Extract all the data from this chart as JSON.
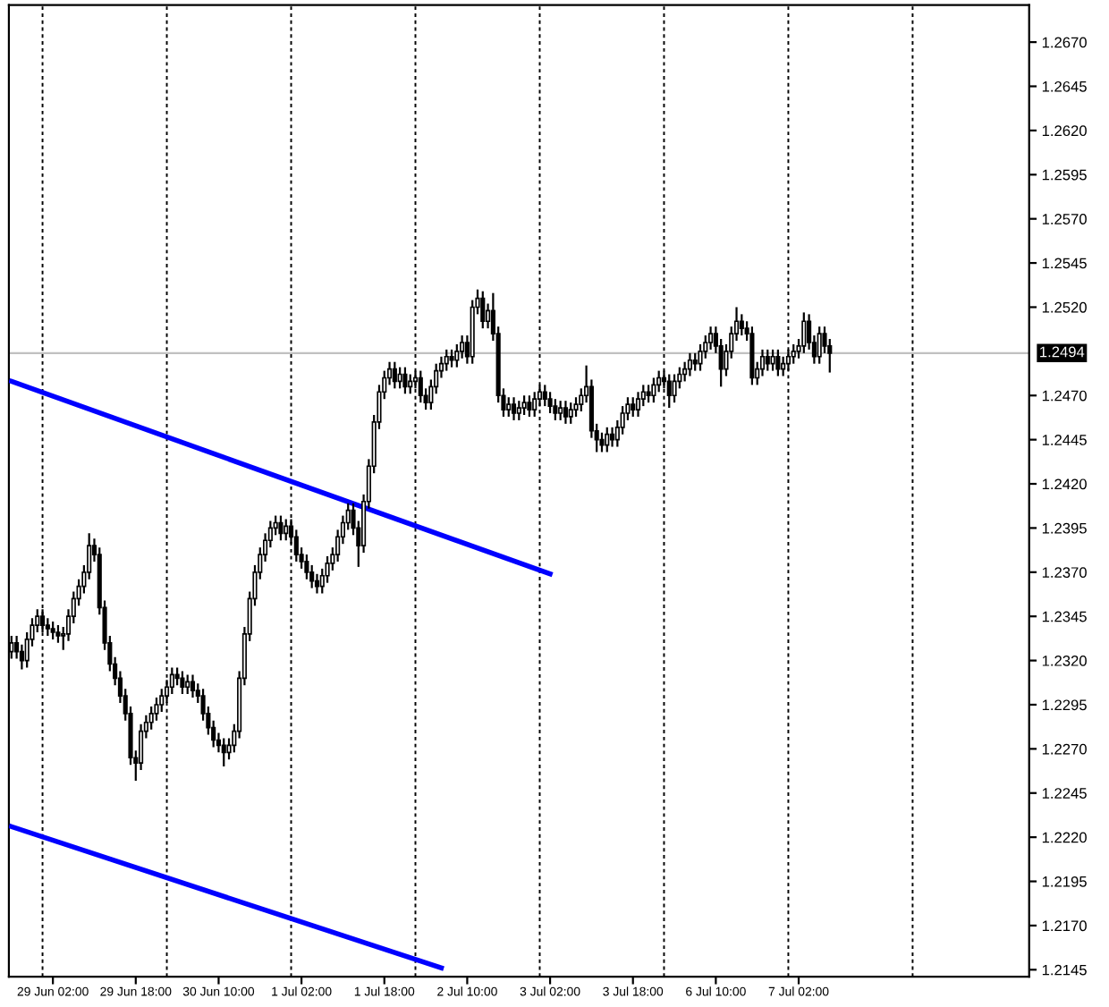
{
  "chart_data": {
    "type": "candlestick",
    "categories": [
      null,
      null,
      null,
      null,
      null,
      null,
      null,
      null,
      "29 Jun 02:00",
      null,
      null,
      null,
      null,
      null,
      null,
      null,
      null,
      null,
      null,
      null,
      null,
      null,
      null,
      null,
      "29 Jun 18:00",
      null,
      null,
      null,
      null,
      null,
      null,
      null,
      null,
      null,
      null,
      null,
      null,
      null,
      null,
      null,
      "30 Jun 10:00",
      null,
      null,
      null,
      null,
      null,
      null,
      null,
      null,
      null,
      null,
      null,
      null,
      null,
      null,
      null,
      "1 Jul 02:00",
      null,
      null,
      null,
      null,
      null,
      null,
      null,
      null,
      null,
      null,
      null,
      null,
      null,
      null,
      null,
      "1 Jul 18:00",
      null,
      null,
      null,
      null,
      null,
      null,
      null,
      null,
      null,
      null,
      null,
      null,
      null,
      null,
      null,
      "2 Jul 10:00",
      null,
      null,
      null,
      null,
      null,
      null,
      null,
      null,
      null,
      null,
      null,
      null,
      null,
      null,
      null,
      "3 Jul 02:00",
      null,
      null,
      null,
      null,
      null,
      null,
      null,
      null,
      null,
      null,
      null,
      null,
      null,
      null,
      null,
      "3 Jul 18:00",
      null,
      null,
      null,
      null,
      null,
      null,
      null,
      null,
      null,
      null,
      null,
      null,
      null,
      null,
      null,
      "6 Jul 10:00",
      null,
      null,
      null,
      null,
      null,
      null,
      null,
      null,
      null,
      null,
      null,
      null,
      null,
      null,
      null,
      "7 Jul 02:00",
      null,
      null,
      null,
      null,
      null,
      null,
      null,
      null,
      null,
      null,
      null,
      null,
      null,
      null,
      null,
      null,
      null,
      null,
      null,
      null,
      null,
      null,
      null,
      null,
      null,
      null,
      null,
      null,
      null,
      null,
      null,
      null,
      null,
      null,
      null,
      null,
      null,
      null,
      null,
      null,
      null,
      null,
      null,
      null
    ],
    "ohlc": [
      [
        1.2325,
        1.2334,
        1.2321,
        1.233
      ],
      [
        1.233,
        1.2334,
        1.2321,
        1.2325
      ],
      [
        1.2325,
        1.2329,
        1.2315,
        1.232
      ],
      [
        1.232,
        1.2336,
        1.2316,
        1.2332
      ],
      [
        1.2332,
        1.2344,
        1.2328,
        1.234
      ],
      [
        1.234,
        1.2349,
        1.2336,
        1.2345
      ],
      [
        1.2345,
        1.2349,
        1.2336,
        1.234
      ],
      [
        1.234,
        1.2344,
        1.2334,
        1.2338
      ],
      [
        1.2338,
        1.2342,
        1.2332,
        1.2336
      ],
      [
        1.2336,
        1.234,
        1.233,
        1.2334
      ],
      [
        1.2334,
        1.2339,
        1.2326,
        1.2335
      ],
      [
        1.2335,
        1.2349,
        1.2331,
        1.2345
      ],
      [
        1.2345,
        1.2359,
        1.2341,
        1.2355
      ],
      [
        1.2355,
        1.2366,
        1.2351,
        1.2362
      ],
      [
        1.2362,
        1.2374,
        1.2358,
        1.237
      ],
      [
        1.237,
        1.2392,
        1.2366,
        1.2385
      ],
      [
        1.2385,
        1.2389,
        1.2376,
        1.238
      ],
      [
        1.238,
        1.2384,
        1.2346,
        1.235
      ],
      [
        1.235,
        1.2354,
        1.2326,
        1.233
      ],
      [
        1.233,
        1.2334,
        1.2314,
        1.2318
      ],
      [
        1.2318,
        1.2322,
        1.2306,
        1.231
      ],
      [
        1.231,
        1.2314,
        1.2296,
        1.23
      ],
      [
        1.23,
        1.2304,
        1.2286,
        1.229
      ],
      [
        1.229,
        1.2294,
        1.2261,
        1.2265
      ],
      [
        1.2265,
        1.2269,
        1.2252,
        1.2262
      ],
      [
        1.2262,
        1.2284,
        1.2258,
        1.228
      ],
      [
        1.228,
        1.2289,
        1.2276,
        1.2285
      ],
      [
        1.2285,
        1.2294,
        1.2281,
        1.229
      ],
      [
        1.229,
        1.2299,
        1.2286,
        1.2295
      ],
      [
        1.2295,
        1.2304,
        1.2291,
        1.23
      ],
      [
        1.23,
        1.2309,
        1.2296,
        1.2305
      ],
      [
        1.2305,
        1.2316,
        1.2301,
        1.2312
      ],
      [
        1.2312,
        1.2316,
        1.2306,
        1.231
      ],
      [
        1.231,
        1.2314,
        1.2301,
        1.2305
      ],
      [
        1.2305,
        1.2312,
        1.2301,
        1.2308
      ],
      [
        1.2308,
        1.2312,
        1.2299,
        1.2303
      ],
      [
        1.2303,
        1.2307,
        1.2296,
        1.23
      ],
      [
        1.23,
        1.2304,
        1.2286,
        1.229
      ],
      [
        1.229,
        1.2294,
        1.2278,
        1.2282
      ],
      [
        1.2282,
        1.2286,
        1.2271,
        1.2275
      ],
      [
        1.2275,
        1.2279,
        1.2268,
        1.2272
      ],
      [
        1.2272,
        1.2276,
        1.226,
        1.2268
      ],
      [
        1.2268,
        1.2276,
        1.2264,
        1.2272
      ],
      [
        1.2272,
        1.2284,
        1.2268,
        1.228
      ],
      [
        1.228,
        1.2314,
        1.2276,
        1.231
      ],
      [
        1.231,
        1.2339,
        1.2306,
        1.2335
      ],
      [
        1.2335,
        1.2359,
        1.2331,
        1.2355
      ],
      [
        1.2355,
        1.2374,
        1.2351,
        1.237
      ],
      [
        1.237,
        1.2384,
        1.2366,
        1.238
      ],
      [
        1.238,
        1.2392,
        1.2376,
        1.2388
      ],
      [
        1.2388,
        1.2399,
        1.2384,
        1.2395
      ],
      [
        1.2395,
        1.2402,
        1.2391,
        1.2398
      ],
      [
        1.2398,
        1.2402,
        1.2388,
        1.2392
      ],
      [
        1.2392,
        1.24,
        1.2388,
        1.2396
      ],
      [
        1.2396,
        1.24,
        1.2386,
        1.239
      ],
      [
        1.239,
        1.2394,
        1.2376,
        1.238
      ],
      [
        1.238,
        1.2384,
        1.2372,
        1.2376
      ],
      [
        1.2376,
        1.238,
        1.2366,
        1.237
      ],
      [
        1.237,
        1.2374,
        1.2361,
        1.2365
      ],
      [
        1.2365,
        1.2369,
        1.2358,
        1.2362
      ],
      [
        1.2362,
        1.2372,
        1.2358,
        1.2368
      ],
      [
        1.2368,
        1.2379,
        1.2364,
        1.2375
      ],
      [
        1.2375,
        1.2384,
        1.2371,
        1.238
      ],
      [
        1.238,
        1.2394,
        1.2376,
        1.239
      ],
      [
        1.239,
        1.2402,
        1.2386,
        1.2398
      ],
      [
        1.2398,
        1.2409,
        1.2394,
        1.2405
      ],
      [
        1.2405,
        1.2409,
        1.2391,
        1.2395
      ],
      [
        1.2395,
        1.2399,
        1.2373,
        1.2385
      ],
      [
        1.2385,
        1.2414,
        1.2381,
        1.241
      ],
      [
        1.241,
        1.2434,
        1.2406,
        1.243
      ],
      [
        1.243,
        1.2459,
        1.2426,
        1.2455
      ],
      [
        1.2455,
        1.2476,
        1.2451,
        1.2472
      ],
      [
        1.2472,
        1.2484,
        1.2468,
        1.248
      ],
      [
        1.248,
        1.2489,
        1.2476,
        1.2485
      ],
      [
        1.2485,
        1.2489,
        1.2474,
        1.2478
      ],
      [
        1.2478,
        1.2486,
        1.2474,
        1.2482
      ],
      [
        1.2482,
        1.2486,
        1.2471,
        1.2475
      ],
      [
        1.2475,
        1.2482,
        1.2471,
        1.2478
      ],
      [
        1.2478,
        1.2484,
        1.2474,
        1.248
      ],
      [
        1.248,
        1.2484,
        1.2466,
        1.247
      ],
      [
        1.247,
        1.2474,
        1.2462,
        1.2466
      ],
      [
        1.2466,
        1.2479,
        1.2462,
        1.2475
      ],
      [
        1.2475,
        1.2488,
        1.2471,
        1.2484
      ],
      [
        1.2484,
        1.2492,
        1.248,
        1.2488
      ],
      [
        1.2488,
        1.2496,
        1.2484,
        1.2492
      ],
      [
        1.2492,
        1.2496,
        1.2486,
        1.249
      ],
      [
        1.249,
        1.2499,
        1.2486,
        1.2495
      ],
      [
        1.2495,
        1.2504,
        1.2491,
        1.25
      ],
      [
        1.25,
        1.2504,
        1.2488,
        1.2492
      ],
      [
        1.2492,
        1.2524,
        1.2488,
        1.252
      ],
      [
        1.252,
        1.253,
        1.2516,
        1.2525
      ],
      [
        1.2525,
        1.2529,
        1.2508,
        1.2512
      ],
      [
        1.2512,
        1.2522,
        1.2508,
        1.2518
      ],
      [
        1.2518,
        1.2528,
        1.2501,
        1.2505
      ],
      [
        1.2505,
        1.2509,
        1.2466,
        1.247
      ],
      [
        1.247,
        1.2474,
        1.2458,
        1.2462
      ],
      [
        1.2462,
        1.2469,
        1.2458,
        1.2465
      ],
      [
        1.2465,
        1.2469,
        1.2456,
        1.246
      ],
      [
        1.246,
        1.2467,
        1.2456,
        1.2463
      ],
      [
        1.2463,
        1.247,
        1.2459,
        1.2466
      ],
      [
        1.2466,
        1.247,
        1.2458,
        1.2462
      ],
      [
        1.2462,
        1.2472,
        1.2458,
        1.2468
      ],
      [
        1.2468,
        1.2476,
        1.2464,
        1.2472
      ],
      [
        1.2472,
        1.2476,
        1.2464,
        1.2468
      ],
      [
        1.2468,
        1.2472,
        1.246,
        1.2464
      ],
      [
        1.2464,
        1.2468,
        1.2456,
        1.246
      ],
      [
        1.246,
        1.2467,
        1.2456,
        1.2463
      ],
      [
        1.2463,
        1.2467,
        1.2454,
        1.2458
      ],
      [
        1.2458,
        1.2466,
        1.2454,
        1.2462
      ],
      [
        1.2462,
        1.2469,
        1.2458,
        1.2465
      ],
      [
        1.2465,
        1.2474,
        1.2461,
        1.247
      ],
      [
        1.247,
        1.2487,
        1.2466,
        1.2475
      ],
      [
        1.2475,
        1.2479,
        1.2446,
        1.245
      ],
      [
        1.245,
        1.2454,
        1.2438,
        1.2445
      ],
      [
        1.2445,
        1.2449,
        1.2438,
        1.2442
      ],
      [
        1.2442,
        1.2452,
        1.2438,
        1.2448
      ],
      [
        1.2448,
        1.2452,
        1.2441,
        1.2445
      ],
      [
        1.2445,
        1.2456,
        1.2441,
        1.2452
      ],
      [
        1.2452,
        1.2464,
        1.2448,
        1.246
      ],
      [
        1.246,
        1.2469,
        1.2456,
        1.2465
      ],
      [
        1.2465,
        1.2469,
        1.2458,
        1.2462
      ],
      [
        1.2462,
        1.2472,
        1.2458,
        1.2468
      ],
      [
        1.2468,
        1.2476,
        1.2464,
        1.2472
      ],
      [
        1.2472,
        1.2476,
        1.2466,
        1.247
      ],
      [
        1.247,
        1.248,
        1.2466,
        1.2476
      ],
      [
        1.2476,
        1.2484,
        1.2472,
        1.248
      ],
      [
        1.248,
        1.2484,
        1.2474,
        1.2478
      ],
      [
        1.2478,
        1.2482,
        1.2463,
        1.247
      ],
      [
        1.247,
        1.2482,
        1.2466,
        1.2478
      ],
      [
        1.2478,
        1.2486,
        1.2474,
        1.2482
      ],
      [
        1.2482,
        1.2489,
        1.2478,
        1.2485
      ],
      [
        1.2485,
        1.2494,
        1.2481,
        1.249
      ],
      [
        1.249,
        1.2494,
        1.2484,
        1.2488
      ],
      [
        1.2488,
        1.2499,
        1.2484,
        1.2495
      ],
      [
        1.2495,
        1.2504,
        1.2491,
        1.25
      ],
      [
        1.25,
        1.2509,
        1.2496,
        1.2505
      ],
      [
        1.2505,
        1.2509,
        1.2494,
        1.2498
      ],
      [
        1.2498,
        1.2502,
        1.2475,
        1.2485
      ],
      [
        1.2485,
        1.2499,
        1.2481,
        1.2495
      ],
      [
        1.2495,
        1.2509,
        1.2491,
        1.2505
      ],
      [
        1.2505,
        1.252,
        1.2501,
        1.2512
      ],
      [
        1.2512,
        1.2516,
        1.2504,
        1.2508
      ],
      [
        1.2508,
        1.2512,
        1.2501,
        1.2505
      ],
      [
        1.2505,
        1.2509,
        1.2476,
        1.248
      ],
      [
        1.248,
        1.2489,
        1.2476,
        1.2485
      ],
      [
        1.2485,
        1.2496,
        1.2481,
        1.2492
      ],
      [
        1.2492,
        1.2496,
        1.2484,
        1.2488
      ],
      [
        1.2488,
        1.2496,
        1.2484,
        1.2492
      ],
      [
        1.2492,
        1.2496,
        1.2481,
        1.2485
      ],
      [
        1.2485,
        1.2492,
        1.2481,
        1.2488
      ],
      [
        1.2488,
        1.2496,
        1.2484,
        1.2492
      ],
      [
        1.2492,
        1.2499,
        1.2488,
        1.2495
      ],
      [
        1.2495,
        1.2502,
        1.2491,
        1.2498
      ],
      [
        1.2498,
        1.2517,
        1.2494,
        1.2512
      ],
      [
        1.2512,
        1.2516,
        1.2496,
        1.25
      ],
      [
        1.25,
        1.2504,
        1.2488,
        1.2492
      ],
      [
        1.2492,
        1.2509,
        1.2488,
        1.2505
      ],
      [
        1.2505,
        1.2509,
        1.2494,
        1.2498
      ],
      [
        1.2498,
        1.2502,
        1.2483,
        1.2494
      ],
      null,
      null,
      null,
      null,
      null,
      null,
      null,
      null,
      null,
      null,
      null,
      null,
      null,
      null,
      null,
      null,
      null,
      null,
      null,
      null,
      null,
      null,
      null,
      null,
      null,
      null,
      null,
      null,
      null,
      null,
      null,
      null,
      null,
      null,
      null,
      null,
      null,
      null
    ],
    "series": [
      {
        "type": "line",
        "color": "#0000ff",
        "values": [
          1.2478,
          null,
          null,
          null,
          null,
          null,
          null,
          null,
          null,
          null,
          null,
          null,
          null,
          null,
          null,
          null,
          null,
          null,
          null,
          null,
          null,
          null,
          null,
          null,
          null,
          null,
          null,
          null,
          null,
          null,
          null,
          null,
          null,
          null,
          null,
          null,
          null,
          null,
          null,
          null,
          null,
          null,
          null,
          null,
          null,
          null,
          null,
          null,
          null,
          null,
          null,
          null,
          null,
          null,
          null,
          null,
          null,
          null,
          null,
          null,
          null,
          null,
          null,
          null,
          null,
          null,
          null,
          null,
          null,
          null,
          null,
          null,
          null,
          null,
          null,
          null,
          null,
          null,
          null,
          null,
          null,
          null,
          null,
          null,
          null,
          null,
          null,
          null,
          null,
          null,
          null,
          null,
          null,
          null,
          null,
          null,
          null,
          null,
          null,
          null,
          null,
          null,
          null,
          null,
          1.2369,
          null,
          null,
          null,
          null,
          null,
          null,
          null,
          null,
          null,
          null,
          null,
          null,
          null,
          null,
          null,
          null,
          null,
          null,
          null,
          null,
          null,
          null,
          null,
          null,
          null,
          null,
          null,
          null,
          null,
          null,
          null,
          null,
          null,
          null,
          null,
          null,
          null,
          null,
          null,
          null,
          null,
          null,
          null,
          null,
          null,
          null,
          null,
          null,
          null,
          null,
          null,
          null,
          null,
          null,
          null,
          null,
          null,
          null,
          null,
          null,
          null,
          null,
          null,
          null,
          null,
          null,
          null,
          null,
          null,
          null,
          null,
          null,
          null,
          null,
          null,
          null,
          null,
          null,
          null,
          null,
          null,
          null,
          null,
          null,
          null,
          null,
          null,
          null,
          null,
          null,
          null,
          null
        ]
      },
      {
        "type": "line",
        "color": "#0000ff",
        "values": [
          1.2226,
          null,
          null,
          null,
          null,
          null,
          null,
          null,
          null,
          null,
          null,
          null,
          null,
          null,
          null,
          null,
          null,
          null,
          null,
          null,
          null,
          null,
          null,
          null,
          null,
          null,
          null,
          null,
          null,
          null,
          null,
          null,
          null,
          null,
          null,
          null,
          null,
          null,
          null,
          null,
          null,
          null,
          null,
          null,
          null,
          null,
          null,
          null,
          null,
          null,
          null,
          null,
          null,
          null,
          null,
          null,
          null,
          null,
          null,
          null,
          null,
          null,
          null,
          null,
          null,
          null,
          null,
          null,
          null,
          null,
          null,
          null,
          null,
          null,
          null,
          null,
          null,
          null,
          null,
          null,
          null,
          null,
          null,
          1.2146,
          null,
          null,
          null,
          null,
          null,
          null,
          null,
          null,
          null,
          null,
          null,
          null,
          null,
          null,
          null,
          null,
          null,
          null,
          null,
          null,
          null,
          null,
          null,
          null,
          null,
          null,
          null,
          null,
          null,
          null,
          null,
          null,
          null,
          null,
          null,
          null,
          null,
          null,
          null,
          null,
          null,
          null,
          null,
          null,
          null,
          null,
          null,
          null,
          null,
          null,
          null,
          null,
          null,
          null,
          null,
          null,
          null,
          null,
          null,
          null,
          null,
          null,
          null,
          null,
          null,
          null,
          null,
          null,
          null,
          null,
          null,
          null,
          null,
          null,
          null,
          null,
          null,
          null,
          null,
          null,
          null,
          null,
          null,
          null,
          null,
          null,
          null,
          null,
          null,
          null,
          null,
          null,
          null,
          null,
          null,
          null,
          null,
          null,
          null,
          null,
          null,
          null,
          null,
          null,
          null,
          null,
          null,
          null,
          null,
          null,
          null,
          null,
          null
        ]
      }
    ],
    "ref_lines": [
      {
        "axis": "y",
        "value": 1.2494,
        "label": "1.2494",
        "color": "#c0c0c0",
        "line_style": "solid"
      }
    ],
    "ylim": [
      1.2141,
      1.2691
    ],
    "yticks": [
      {
        "value": 1.2145,
        "label": "1.2145"
      },
      {
        "value": 1.217,
        "label": "1.2170"
      },
      {
        "value": 1.2195,
        "label": "1.2195"
      },
      {
        "value": 1.222,
        "label": "1.2220"
      },
      {
        "value": 1.2245,
        "label": "1.2245"
      },
      {
        "value": 1.227,
        "label": "1.2270"
      },
      {
        "value": 1.2295,
        "label": "1.2295"
      },
      {
        "value": 1.232,
        "label": "1.2320"
      },
      {
        "value": 1.2345,
        "label": "1.2345"
      },
      {
        "value": 1.237,
        "label": "1.2370"
      },
      {
        "value": 1.2395,
        "label": "1.2395"
      },
      {
        "value": 1.242,
        "label": "1.2420"
      },
      {
        "value": 1.2445,
        "label": "1.2445"
      },
      {
        "value": 1.247,
        "label": "1.2470"
      },
      {
        "value": 1.252,
        "label": "1.2520"
      },
      {
        "value": 1.2545,
        "label": "1.2545"
      },
      {
        "value": 1.257,
        "label": "1.2570"
      },
      {
        "value": 1.2595,
        "label": "1.2595"
      },
      {
        "value": 1.262,
        "label": "1.2620"
      },
      {
        "value": 1.2645,
        "label": "1.2645"
      },
      {
        "value": 1.267,
        "label": "1.2670"
      }
    ]
  }
}
